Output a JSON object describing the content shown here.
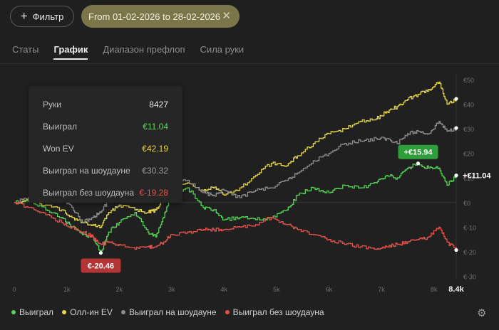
{
  "toolbar": {
    "filter_label": "Фильтр",
    "date_chip": "From 01-02-2026 to 28-02-2026",
    "chip_close": "✕"
  },
  "tabs": [
    {
      "label": "Статы"
    },
    {
      "label": "График"
    },
    {
      "label": "Диапазон префлоп"
    },
    {
      "label": "Сила руки"
    }
  ],
  "tooltip": {
    "rows": [
      {
        "label": "Руки",
        "value": "8427",
        "color": "#e8e8e8"
      },
      {
        "label": "Выиграл",
        "value": "€11.04",
        "color": "#5fd35f"
      },
      {
        "label": "Won EV",
        "value": "€42.19",
        "color": "#e6d64a"
      },
      {
        "label": "Выиграл на шоудауне",
        "value": "€30.32",
        "color": "#9a9a9a"
      },
      {
        "label": "Выиграл без шоудауна",
        "value": "€-19.28",
        "color": "#e5524b"
      }
    ]
  },
  "legend": [
    {
      "label": "Выиграл",
      "color": "#55d455"
    },
    {
      "label": "Олл-ин EV",
      "color": "#e6d64a"
    },
    {
      "label": "Выиграл на шоудауне",
      "color": "#8e8e8e"
    },
    {
      "label": "Выиграл без шоудауна",
      "color": "#e5524b"
    }
  ],
  "chart_data": {
    "type": "line",
    "xlabel": "",
    "ylabel": "",
    "xlim": [
      0,
      8427
    ],
    "ylim": [
      -31,
      52
    ],
    "x_ticks": [
      "0",
      "1k",
      "2k",
      "3k",
      "4k",
      "5k",
      "6k",
      "7k",
      "8k",
      "8.4k"
    ],
    "x_tick_values": [
      0,
      1000,
      2000,
      3000,
      4000,
      5000,
      6000,
      7000,
      8000,
      8427
    ],
    "y_ticks": [
      "€50",
      "€40",
      "€30",
      "€20",
      "€10",
      "€0",
      "€-10",
      "€-20",
      "€-30"
    ],
    "y_tick_values": [
      50,
      40,
      30,
      20,
      10,
      0,
      -10,
      -20,
      -30
    ],
    "grid": false,
    "legend_position": "bottom",
    "series": [
      {
        "name": "Выиграл",
        "color": "#55d455",
        "x": [
          0,
          300,
          600,
          900,
          1100,
          1300,
          1500,
          1650,
          1800,
          2000,
          2300,
          2550,
          2700,
          2850,
          3000,
          3300,
          3600,
          3800,
          4000,
          4300,
          4600,
          4900,
          5200,
          5400,
          5700,
          6000,
          6300,
          6600,
          6900,
          7100,
          7300,
          7500,
          7700,
          7900,
          8100,
          8250,
          8427
        ],
        "y": [
          0,
          1,
          -3,
          -6,
          -10,
          -13,
          -14,
          -20.46,
          -12,
          -8,
          -4,
          -12,
          -14,
          -6,
          4,
          6,
          -2,
          -3,
          -7,
          -6,
          -7,
          -6,
          -3,
          3,
          6,
          4,
          7,
          6,
          8,
          11,
          10,
          14,
          15.94,
          14,
          14,
          7,
          11.04
        ]
      },
      {
        "name": "Олл-ин EV",
        "color": "#e6d64a",
        "x": [
          0,
          300,
          600,
          900,
          1100,
          1300,
          1500,
          1650,
          1800,
          2000,
          2300,
          2550,
          2700,
          2850,
          3000,
          3300,
          3600,
          3800,
          4000,
          4300,
          4600,
          4900,
          5200,
          5400,
          5700,
          6000,
          6300,
          6600,
          6900,
          7100,
          7300,
          7500,
          7700,
          7900,
          8100,
          8250,
          8427
        ],
        "y": [
          0,
          1,
          -1,
          -3,
          -6,
          -8,
          -9,
          -10,
          -4,
          -1,
          -3,
          -4,
          -3,
          2,
          6,
          8,
          5,
          6,
          3,
          6,
          11,
          16,
          15,
          19,
          24,
          28,
          30,
          33,
          34,
          37,
          39,
          42,
          44,
          46,
          49,
          40,
          42.19
        ]
      },
      {
        "name": "Выиграл на шоудауне",
        "color": "#8e8e8e",
        "x": [
          0,
          300,
          600,
          900,
          1100,
          1300,
          1500,
          1650,
          1800,
          2000,
          2300,
          2550,
          2700,
          2850,
          3000,
          3300,
          3600,
          3800,
          4000,
          4300,
          4600,
          4900,
          5200,
          5400,
          5700,
          6000,
          6300,
          6600,
          6900,
          7100,
          7300,
          7500,
          7700,
          7900,
          8100,
          8250,
          8427
        ],
        "y": [
          0,
          2,
          3,
          2,
          -2,
          -8,
          -6,
          -4,
          1,
          4,
          7,
          5,
          8,
          5,
          10,
          9,
          4,
          3,
          5,
          2,
          5,
          6,
          9,
          12,
          17,
          20,
          24,
          25,
          26,
          26,
          24,
          28,
          29,
          28,
          33,
          29,
          30.32
        ]
      },
      {
        "name": "Выиграл без шоудауна",
        "color": "#e5524b",
        "x": [
          0,
          300,
          600,
          900,
          1100,
          1300,
          1500,
          1650,
          1800,
          2000,
          2300,
          2550,
          2700,
          2850,
          3000,
          3300,
          3600,
          3800,
          4000,
          4300,
          4600,
          4900,
          5200,
          5400,
          5700,
          6000,
          6300,
          6600,
          6900,
          7100,
          7300,
          7500,
          7700,
          7900,
          8100,
          8250,
          8427
        ],
        "y": [
          0,
          -2,
          -5,
          -8,
          -10,
          -12,
          -14,
          -17,
          -16,
          -17,
          -19,
          -18,
          -18,
          -16,
          -13,
          -12,
          -11,
          -11,
          -11,
          -10,
          -9,
          -6,
          -9,
          -11,
          -13,
          -15,
          -17,
          -18,
          -19,
          -18,
          -17,
          -16,
          -15,
          -14,
          -10,
          -16,
          -19.28
        ]
      }
    ],
    "annotations": [
      {
        "label": "+€15.94",
        "x": 7700,
        "y": 15.94,
        "color": "#2f9e3a",
        "boxed": true
      },
      {
        "label": "€-20.46",
        "x": 1650,
        "y": -20.46,
        "color": "#b33535",
        "boxed": true
      },
      {
        "label": "+€11.04",
        "x": 8427,
        "y": 11.04,
        "color": "#ffffff",
        "boxed": false
      }
    ]
  }
}
